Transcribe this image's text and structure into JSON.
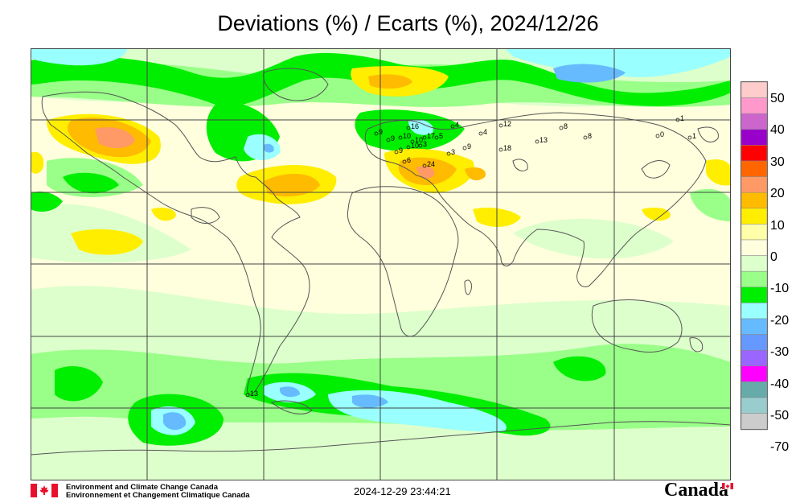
{
  "title": "Deviations (%) / Ecarts (%), 2024/12/26",
  "legend": {
    "tick_labels": [
      "50",
      "40",
      "30",
      "20",
      "10",
      "0",
      "-10",
      "-20",
      "-30",
      "-40",
      "-50",
      "-70"
    ],
    "bins": [
      {
        "color": "#ffcccc"
      },
      {
        "color": "#ff99cc"
      },
      {
        "color": "#cc66cc"
      },
      {
        "color": "#9900cc"
      },
      {
        "color": "#ff0000"
      },
      {
        "color": "#ff6600"
      },
      {
        "color": "#ff9966"
      },
      {
        "color": "#ffbb00"
      },
      {
        "color": "#ffee00"
      },
      {
        "color": "#ffffaa"
      },
      {
        "color": "#ffffdd"
      },
      {
        "color": "#ddffcc"
      },
      {
        "color": "#99ff88"
      },
      {
        "color": "#00ee00"
      },
      {
        "color": "#99ffff"
      },
      {
        "color": "#66bbff"
      },
      {
        "color": "#6699ff"
      },
      {
        "color": "#9966ff"
      },
      {
        "color": "#ff00ff"
      },
      {
        "color": "#66aaaa"
      },
      {
        "color": "#99cccc"
      },
      {
        "color": "#cccccc"
      }
    ]
  },
  "station_values": [
    "9",
    "9",
    "10",
    "16",
    "10",
    "17",
    "9",
    "10",
    "3",
    "4",
    "5",
    "4",
    "12",
    "13",
    "8",
    "3",
    "9",
    "18",
    "6",
    "24",
    "13",
    "8",
    "0",
    "1",
    "1"
  ],
  "footer": {
    "org_en": "Environment and Climate Change Canada",
    "org_fr": "Environnement et Changement Climatique Canada",
    "timestamp": "2024-12-29 23:44:21",
    "wordmark": "Canada"
  },
  "colors": {
    "background_field": "#ffffdd",
    "coast_outline": "#555555",
    "grid_lines": "#444444"
  }
}
